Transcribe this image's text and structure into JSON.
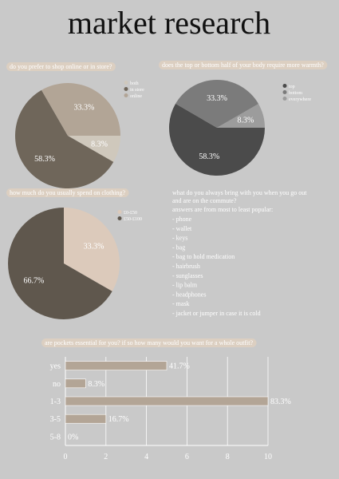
{
  "title": "market research",
  "chart_data": [
    {
      "type": "pie",
      "title": "do you prefer to shop online or in store?",
      "categories": [
        "both",
        "in store",
        "online"
      ],
      "values": [
        8.3,
        58.3,
        33.3
      ],
      "value_labels": [
        "8.3%",
        "58.3%",
        "33.3%"
      ],
      "colors": [
        "#cfc8bc",
        "#6f665a",
        "#b2a596"
      ]
    },
    {
      "type": "pie",
      "title": "does the top or bottom half of your body require more warmth?",
      "categories": [
        "top",
        "bottom",
        "everywhere"
      ],
      "values": [
        58.3,
        33.3,
        8.3
      ],
      "value_labels": [
        "58.3%",
        "33.3%",
        "8.3%"
      ],
      "colors": [
        "#4b4b4b",
        "#7b7b7b",
        "#9c9c9c"
      ]
    },
    {
      "type": "pie",
      "title": "how much do you usually spend on clothing?",
      "categories": [
        "£0-£50",
        "£50-£100"
      ],
      "values": [
        33.3,
        66.7
      ],
      "value_labels": [
        "33.3%",
        "66.7%"
      ],
      "colors": [
        "#dccabb",
        "#5f574d"
      ]
    },
    {
      "type": "bar",
      "orientation": "horizontal",
      "title": "are pockets essential for you? if so how many would you want for a whole outfit?",
      "categories": [
        "yes",
        "no",
        "1-3",
        "3-5",
        "5-8"
      ],
      "values": [
        5,
        1,
        10,
        2,
        0
      ],
      "value_labels": [
        "41.7%",
        "8.3%",
        "83.3%",
        "16.7%",
        "0%"
      ],
      "color": "#b3a596",
      "xlim": [
        0,
        10
      ],
      "xticks": [
        0,
        2,
        4,
        6,
        8,
        10
      ],
      "grid": true
    }
  ],
  "commute": {
    "title_lines": [
      "what do you always bring with you when you go out",
      "and are on the commute?"
    ],
    "subtitle": "answers are from most to least popular:",
    "items": [
      "- phone",
      "- wallet",
      "- keys",
      "- bag",
      "- bag to hold medication",
      "- hairbrush",
      "- sunglasses",
      "- lip balm",
      "- headphones",
      "- mask",
      "- jacket or jumper in case it is cold"
    ]
  }
}
